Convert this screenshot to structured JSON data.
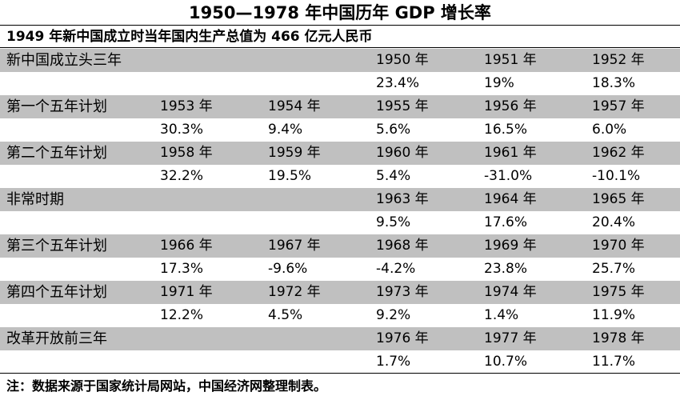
{
  "chart_data": {
    "type": "table",
    "title": "1950—1978 年中国历年 GDP 增长率",
    "subtitle": "1949 年新中国成立时当年国内生产总值为 466 亿元人民币",
    "periods": [
      {
        "name": "新中国成立头三年",
        "cells": [
          {
            "year": "1950 年",
            "rate": "23.4%"
          },
          {
            "year": "1951 年",
            "rate": "19%"
          },
          {
            "year": "1952 年",
            "rate": "18.3%"
          }
        ]
      },
      {
        "name": "第一个五年计划",
        "cells": [
          {
            "year": "1953 年",
            "rate": "30.3%"
          },
          {
            "year": "1954 年",
            "rate": "9.4%"
          },
          {
            "year": "1955 年",
            "rate": "5.6%"
          },
          {
            "year": "1956 年",
            "rate": "16.5%"
          },
          {
            "year": "1957 年",
            "rate": "6.0%"
          }
        ]
      },
      {
        "name": "第二个五年计划",
        "cells": [
          {
            "year": "1958 年",
            "rate": "32.2%"
          },
          {
            "year": "1959 年",
            "rate": "19.5%"
          },
          {
            "year": "1960 年",
            "rate": "5.4%"
          },
          {
            "year": "1961 年",
            "rate": "-31.0%"
          },
          {
            "year": "1962 年",
            "rate": "-10.1%"
          }
        ]
      },
      {
        "name": "非常时期",
        "cells": [
          {
            "year": "1963 年",
            "rate": "9.5%"
          },
          {
            "year": "1964 年",
            "rate": "17.6%"
          },
          {
            "year": "1965 年",
            "rate": "20.4%"
          }
        ]
      },
      {
        "name": "第三个五年计划",
        "cells": [
          {
            "year": "1966 年",
            "rate": "17.3%"
          },
          {
            "year": "1967 年",
            "rate": "-9.6%"
          },
          {
            "year": "1968 年",
            "rate": "-4.2%"
          },
          {
            "year": "1969 年",
            "rate": "23.8%"
          },
          {
            "year": "1970 年",
            "rate": "25.7%"
          }
        ]
      },
      {
        "name": "第四个五年计划",
        "cells": [
          {
            "year": "1971 年",
            "rate": "12.2%"
          },
          {
            "year": "1972 年",
            "rate": "4.5%"
          },
          {
            "year": "1973 年",
            "rate": "9.2%"
          },
          {
            "year": "1974 年",
            "rate": "1.4%"
          },
          {
            "year": "1975 年",
            "rate": "11.9%"
          }
        ]
      },
      {
        "name": "改革开放前三年",
        "cells": [
          {
            "year": "1976 年",
            "rate": "1.7%"
          },
          {
            "year": "1977 年",
            "rate": "10.7%"
          },
          {
            "year": "1978 年",
            "rate": "11.7%"
          }
        ]
      }
    ],
    "note": "注：数据来源于国家统计局网站，中国经济网整理制表。",
    "colors": {
      "year_row_bg": "#c0c0c0",
      "rate_row_bg": "#ffffff"
    }
  }
}
